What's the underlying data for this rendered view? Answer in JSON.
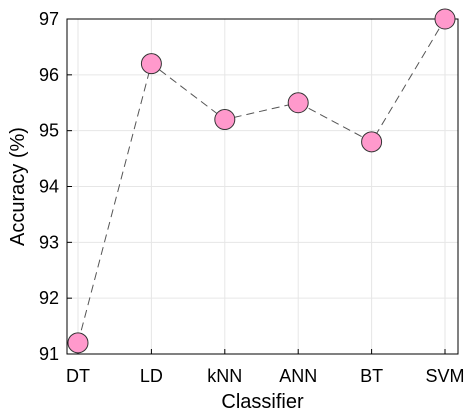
{
  "chart_data": {
    "type": "line",
    "title": "",
    "xlabel": "Classifier",
    "ylabel": "Accuracy (%)",
    "categories": [
      "DT",
      "LD",
      "kNN",
      "ANN",
      "BT",
      "SVM"
    ],
    "series": [
      {
        "values": [
          91.2,
          96.2,
          95.2,
          95.5,
          94.8,
          97.0
        ]
      }
    ],
    "ylim": [
      91,
      97
    ],
    "yticks": [
      91,
      92,
      93,
      94,
      95,
      96,
      97
    ],
    "grid": true,
    "line_style": "dashed",
    "colors": {
      "marker_fill": "#ff99cc",
      "marker_edge": "#333333",
      "line": "#555555",
      "grid": "#e6e6e6"
    }
  }
}
